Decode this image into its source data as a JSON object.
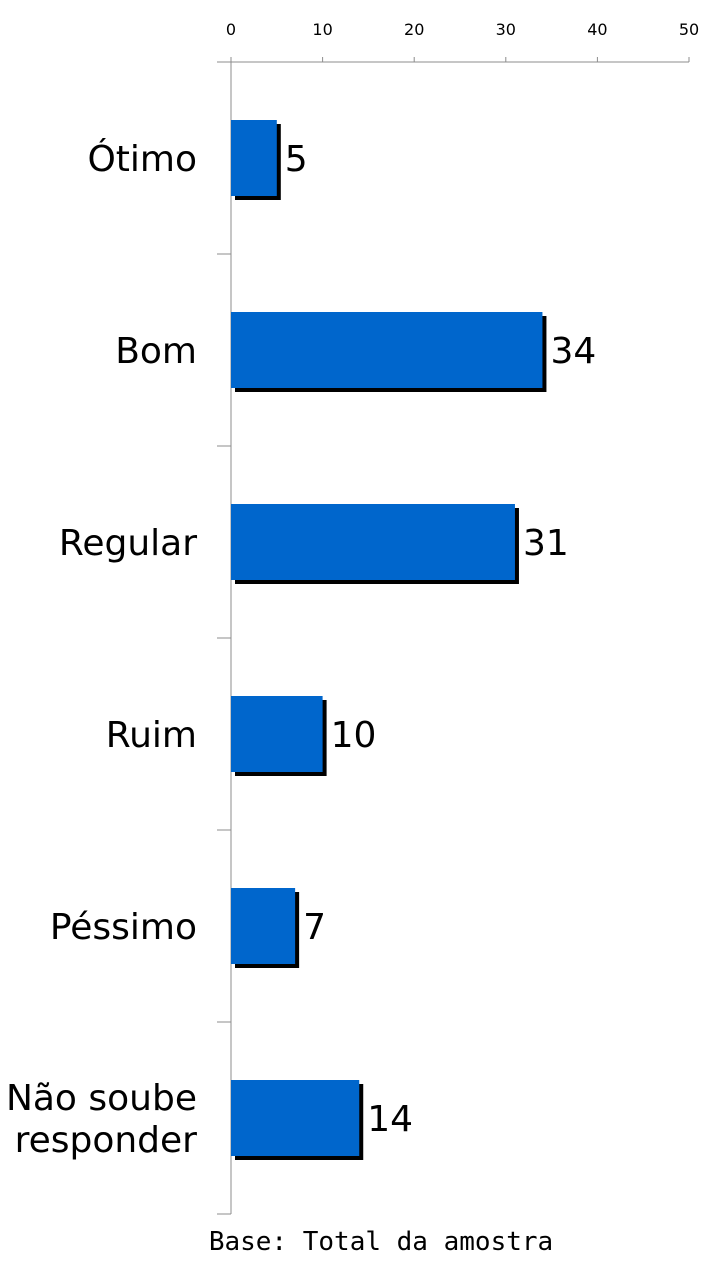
{
  "chart_data": {
    "type": "bar",
    "orientation": "horizontal",
    "categories": [
      [
        "Ótimo"
      ],
      [
        "Bom"
      ],
      [
        "Regular"
      ],
      [
        "Ruim"
      ],
      [
        "Péssimo"
      ],
      [
        "Não soube",
        "responder"
      ]
    ],
    "values": [
      5,
      34,
      31,
      10,
      7,
      14
    ],
    "data_labels": [
      "5",
      "34",
      "31",
      "10",
      "7",
      "14"
    ],
    "xlim": [
      0,
      50
    ],
    "x_ticks": [
      0,
      10,
      20,
      30,
      40,
      50
    ],
    "x_axis_position": "top",
    "grid": false,
    "legend": "none",
    "title": "",
    "xlabel": "",
    "ylabel": "",
    "bar_color": "#0066cc",
    "shadow_color": "#000000",
    "note": "Base: Total da amostra"
  }
}
